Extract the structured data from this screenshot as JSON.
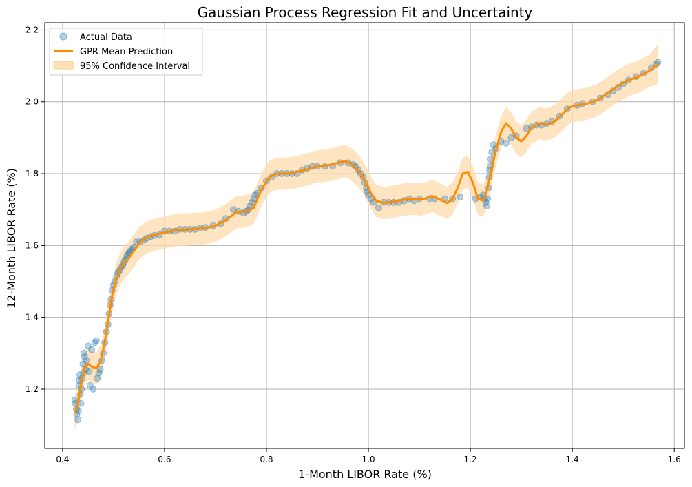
{
  "chart_data": {
    "type": "scatter",
    "title": "Gaussian Process Regression Fit and Uncertainty",
    "xlabel": "1-Month LIBOR Rate (%)",
    "ylabel": "12-Month LIBOR Rate (%)",
    "xlim": [
      0.365,
      1.62
    ],
    "ylim": [
      1.035,
      2.22
    ],
    "xticks": [
      "0.4",
      "0.6",
      "0.8",
      "1.0",
      "1.2",
      "1.4",
      "1.6"
    ],
    "yticks": [
      "1.2",
      "1.4",
      "1.6",
      "1.8",
      "2.0",
      "2.2"
    ],
    "grid": true,
    "legend_position": "upper-left",
    "colors": {
      "scatter": "#1f77b4",
      "mean": "#ff8c00",
      "band": "#ffdbac",
      "grid": "#b0b0b0"
    },
    "series": [
      {
        "name": "Actual Data",
        "kind": "scatter",
        "points": [
          [
            0.424,
            1.17
          ],
          [
            0.425,
            1.16
          ],
          [
            0.427,
            1.145
          ],
          [
            0.428,
            1.13
          ],
          [
            0.43,
            1.115
          ],
          [
            0.431,
            1.14
          ],
          [
            0.432,
            1.21
          ],
          [
            0.433,
            1.225
          ],
          [
            0.434,
            1.24
          ],
          [
            0.435,
            1.185
          ],
          [
            0.436,
            1.16
          ],
          [
            0.437,
            1.2
          ],
          [
            0.438,
            1.23
          ],
          [
            0.44,
            1.27
          ],
          [
            0.441,
            1.245
          ],
          [
            0.442,
            1.3
          ],
          [
            0.443,
            1.29
          ],
          [
            0.445,
            1.255
          ],
          [
            0.447,
            1.28
          ],
          [
            0.45,
            1.32
          ],
          [
            0.452,
            1.25
          ],
          [
            0.454,
            1.21
          ],
          [
            0.457,
            1.31
          ],
          [
            0.46,
            1.2
          ],
          [
            0.463,
            1.33
          ],
          [
            0.466,
            1.335
          ],
          [
            0.468,
            1.23
          ],
          [
            0.471,
            1.245
          ],
          [
            0.474,
            1.255
          ],
          [
            0.477,
            1.28
          ],
          [
            0.48,
            1.3
          ],
          [
            0.483,
            1.33
          ],
          [
            0.486,
            1.36
          ],
          [
            0.489,
            1.38
          ],
          [
            0.491,
            1.41
          ],
          [
            0.493,
            1.435
          ],
          [
            0.495,
            1.45
          ],
          [
            0.497,
            1.475
          ],
          [
            0.5,
            1.49
          ],
          [
            0.503,
            1.5
          ],
          [
            0.506,
            1.515
          ],
          [
            0.509,
            1.525
          ],
          [
            0.512,
            1.53
          ],
          [
            0.515,
            1.54
          ],
          [
            0.518,
            1.545
          ],
          [
            0.521,
            1.555
          ],
          [
            0.523,
            1.56
          ],
          [
            0.526,
            1.57
          ],
          [
            0.528,
            1.575
          ],
          [
            0.531,
            1.58
          ],
          [
            0.533,
            1.585
          ],
          [
            0.536,
            1.59
          ],
          [
            0.54,
            1.595
          ],
          [
            0.545,
            1.61
          ],
          [
            0.552,
            1.61
          ],
          [
            0.56,
            1.615
          ],
          [
            0.565,
            1.62
          ],
          [
            0.573,
            1.625
          ],
          [
            0.58,
            1.628
          ],
          [
            0.59,
            1.63
          ],
          [
            0.6,
            1.64
          ],
          [
            0.61,
            1.64
          ],
          [
            0.62,
            1.64
          ],
          [
            0.63,
            1.645
          ],
          [
            0.64,
            1.645
          ],
          [
            0.65,
            1.645
          ],
          [
            0.66,
            1.645
          ],
          [
            0.67,
            1.648
          ],
          [
            0.68,
            1.65
          ],
          [
            0.695,
            1.655
          ],
          [
            0.71,
            1.66
          ],
          [
            0.72,
            1.675
          ],
          [
            0.735,
            1.7
          ],
          [
            0.745,
            1.695
          ],
          [
            0.755,
            1.69
          ],
          [
            0.76,
            1.695
          ],
          [
            0.765,
            1.7
          ],
          [
            0.768,
            1.71
          ],
          [
            0.772,
            1.72
          ],
          [
            0.775,
            1.73
          ],
          [
            0.778,
            1.74
          ],
          [
            0.782,
            1.745
          ],
          [
            0.79,
            1.76
          ],
          [
            0.8,
            1.78
          ],
          [
            0.81,
            1.79
          ],
          [
            0.82,
            1.8
          ],
          [
            0.83,
            1.8
          ],
          [
            0.84,
            1.8
          ],
          [
            0.85,
            1.8
          ],
          [
            0.86,
            1.8
          ],
          [
            0.87,
            1.81
          ],
          [
            0.88,
            1.815
          ],
          [
            0.89,
            1.82
          ],
          [
            0.9,
            1.82
          ],
          [
            0.915,
            1.82
          ],
          [
            0.93,
            1.82
          ],
          [
            0.945,
            1.83
          ],
          [
            0.96,
            1.83
          ],
          [
            0.97,
            1.825
          ],
          [
            0.975,
            1.82
          ],
          [
            0.98,
            1.81
          ],
          [
            0.985,
            1.8
          ],
          [
            0.99,
            1.79
          ],
          [
            0.993,
            1.775
          ],
          [
            0.996,
            1.76
          ],
          [
            0.998,
            1.75
          ],
          [
            1.0,
            1.74
          ],
          [
            1.005,
            1.73
          ],
          [
            1.01,
            1.72
          ],
          [
            1.02,
            1.705
          ],
          [
            1.03,
            1.72
          ],
          [
            1.04,
            1.72
          ],
          [
            1.05,
            1.72
          ],
          [
            1.06,
            1.72
          ],
          [
            1.07,
            1.725
          ],
          [
            1.08,
            1.73
          ],
          [
            1.09,
            1.725
          ],
          [
            1.1,
            1.73
          ],
          [
            1.12,
            1.73
          ],
          [
            1.13,
            1.73
          ],
          [
            1.15,
            1.73
          ],
          [
            1.165,
            1.73
          ],
          [
            1.18,
            1.735
          ],
          [
            1.21,
            1.73
          ],
          [
            1.22,
            1.735
          ],
          [
            1.225,
            1.74
          ],
          [
            1.228,
            1.73
          ],
          [
            1.23,
            1.72
          ],
          [
            1.232,
            1.71
          ],
          [
            1.234,
            1.73
          ],
          [
            1.236,
            1.76
          ],
          [
            1.237,
            1.79
          ],
          [
            1.238,
            1.81
          ],
          [
            1.239,
            1.82
          ],
          [
            1.24,
            1.84
          ],
          [
            1.242,
            1.86
          ],
          [
            1.245,
            1.88
          ],
          [
            1.25,
            1.87
          ],
          [
            1.26,
            1.89
          ],
          [
            1.27,
            1.885
          ],
          [
            1.28,
            1.9
          ],
          [
            1.29,
            1.905
          ],
          [
            1.31,
            1.925
          ],
          [
            1.32,
            1.93
          ],
          [
            1.33,
            1.935
          ],
          [
            1.34,
            1.935
          ],
          [
            1.35,
            1.94
          ],
          [
            1.36,
            1.945
          ],
          [
            1.375,
            1.96
          ],
          [
            1.39,
            1.98
          ],
          [
            1.41,
            1.99
          ],
          [
            1.42,
            1.995
          ],
          [
            1.44,
            2.0
          ],
          [
            1.455,
            2.01
          ],
          [
            1.47,
            2.02
          ],
          [
            1.48,
            2.03
          ],
          [
            1.49,
            2.04
          ],
          [
            1.5,
            2.05
          ],
          [
            1.51,
            2.06
          ],
          [
            1.525,
            2.07
          ],
          [
            1.54,
            2.08
          ],
          [
            1.555,
            2.095
          ],
          [
            1.565,
            2.105
          ],
          [
            1.568,
            2.11
          ]
        ]
      },
      {
        "name": "GPR Mean Prediction",
        "kind": "line",
        "points": [
          [
            0.424,
            1.135
          ],
          [
            0.43,
            1.16
          ],
          [
            0.437,
            1.215
          ],
          [
            0.443,
            1.258
          ],
          [
            0.45,
            1.27
          ],
          [
            0.458,
            1.262
          ],
          [
            0.466,
            1.258
          ],
          [
            0.474,
            1.275
          ],
          [
            0.482,
            1.325
          ],
          [
            0.49,
            1.395
          ],
          [
            0.497,
            1.46
          ],
          [
            0.505,
            1.505
          ],
          [
            0.513,
            1.535
          ],
          [
            0.522,
            1.555
          ],
          [
            0.53,
            1.565
          ],
          [
            0.54,
            1.585
          ],
          [
            0.55,
            1.605
          ],
          [
            0.56,
            1.618
          ],
          [
            0.575,
            1.628
          ],
          [
            0.6,
            1.636
          ],
          [
            0.62,
            1.642
          ],
          [
            0.65,
            1.645
          ],
          [
            0.68,
            1.648
          ],
          [
            0.7,
            1.655
          ],
          [
            0.72,
            1.67
          ],
          [
            0.74,
            1.692
          ],
          [
            0.76,
            1.695
          ],
          [
            0.775,
            1.705
          ],
          [
            0.79,
            1.755
          ],
          [
            0.805,
            1.79
          ],
          [
            0.82,
            1.8
          ],
          [
            0.84,
            1.8
          ],
          [
            0.86,
            1.805
          ],
          [
            0.88,
            1.812
          ],
          [
            0.9,
            1.82
          ],
          [
            0.92,
            1.823
          ],
          [
            0.94,
            1.83
          ],
          [
            0.955,
            1.835
          ],
          [
            0.965,
            1.828
          ],
          [
            0.975,
            1.815
          ],
          [
            0.985,
            1.8
          ],
          [
            0.995,
            1.775
          ],
          [
            1.005,
            1.745
          ],
          [
            1.015,
            1.725
          ],
          [
            1.03,
            1.718
          ],
          [
            1.05,
            1.722
          ],
          [
            1.07,
            1.728
          ],
          [
            1.09,
            1.73
          ],
          [
            1.1,
            1.728
          ],
          [
            1.11,
            1.73
          ],
          [
            1.125,
            1.738
          ],
          [
            1.14,
            1.728
          ],
          [
            1.155,
            1.718
          ],
          [
            1.165,
            1.73
          ],
          [
            1.175,
            1.76
          ],
          [
            1.185,
            1.8
          ],
          [
            1.195,
            1.805
          ],
          [
            1.205,
            1.775
          ],
          [
            1.215,
            1.73
          ],
          [
            1.225,
            1.725
          ],
          [
            1.232,
            1.75
          ],
          [
            1.24,
            1.8
          ],
          [
            1.25,
            1.865
          ],
          [
            1.26,
            1.915
          ],
          [
            1.27,
            1.94
          ],
          [
            1.28,
            1.925
          ],
          [
            1.29,
            1.9
          ],
          [
            1.3,
            1.89
          ],
          [
            1.31,
            1.905
          ],
          [
            1.32,
            1.928
          ],
          [
            1.335,
            1.94
          ],
          [
            1.35,
            1.937
          ],
          [
            1.365,
            1.945
          ],
          [
            1.38,
            1.965
          ],
          [
            1.395,
            1.985
          ],
          [
            1.41,
            1.99
          ],
          [
            1.43,
            1.995
          ],
          [
            1.45,
            2.005
          ],
          [
            1.47,
            2.025
          ],
          [
            1.49,
            2.045
          ],
          [
            1.51,
            2.06
          ],
          [
            1.53,
            2.07
          ],
          [
            1.55,
            2.085
          ],
          [
            1.568,
            2.105
          ]
        ]
      },
      {
        "name": "95% Confidence Interval",
        "kind": "band",
        "half_width": [
          0.05,
          0.045,
          0.045,
          0.045,
          0.045,
          0.045,
          0.045,
          0.045,
          0.045,
          0.045,
          0.045,
          0.045,
          0.045,
          0.045,
          0.045,
          0.045,
          0.045,
          0.045,
          0.045,
          0.045,
          0.045,
          0.045,
          0.045,
          0.045,
          0.045,
          0.045,
          0.045,
          0.045,
          0.045,
          0.045,
          0.045,
          0.045,
          0.045,
          0.045,
          0.045,
          0.045,
          0.045,
          0.045,
          0.045,
          0.045,
          0.045,
          0.045,
          0.045,
          0.045,
          0.045,
          0.045,
          0.045,
          0.045,
          0.045,
          0.045,
          0.045,
          0.045,
          0.045,
          0.045,
          0.045,
          0.045,
          0.045,
          0.045,
          0.045,
          0.045,
          0.045,
          0.045,
          0.045,
          0.045,
          0.045,
          0.045,
          0.045,
          0.045,
          0.045,
          0.045,
          0.045,
          0.045,
          0.045,
          0.045,
          0.045,
          0.045,
          0.045,
          0.045,
          0.045,
          0.045,
          0.045,
          0.045,
          0.045,
          0.055
        ]
      }
    ]
  }
}
